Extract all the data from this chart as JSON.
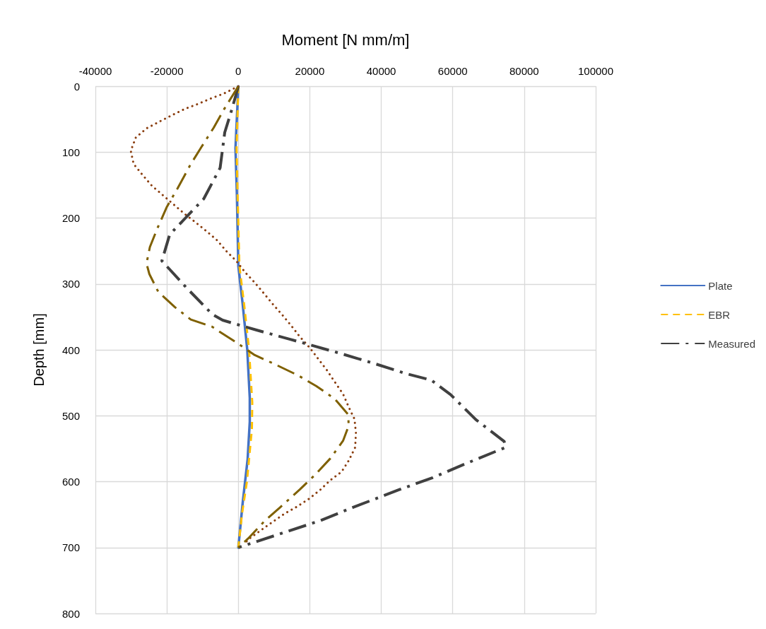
{
  "chart_data": {
    "type": "line",
    "xlabel": "Moment [N mm/m]",
    "ylabel": "Depth [mm]",
    "xlim": [
      -40000,
      100000
    ],
    "xticks": [
      -40000,
      -20000,
      0,
      20000,
      40000,
      60000,
      80000,
      100000
    ],
    "ylim": [
      800,
      0
    ],
    "yticks": [
      0,
      100,
      200,
      300,
      400,
      500,
      600,
      700,
      800
    ],
    "grid": true,
    "legend": "right",
    "marker": "none",
    "series": [
      {
        "name": "Plate",
        "color": "#4472c4",
        "line_style": "solid",
        "x": [
          0,
          -800,
          -400,
          0,
          1200,
          2500,
          3200,
          3200,
          2600,
          1200,
          0
        ],
        "values": [
          0,
          94,
          166,
          273,
          330,
          400,
          473,
          509,
          566,
          633,
          700
        ]
      },
      {
        "name": "EBR",
        "color": "#ffc000",
        "line_style": "dashed",
        "x": [
          0,
          -500,
          -200,
          300,
          1600,
          3000,
          3900,
          3800,
          2400,
          1000,
          0
        ],
        "values": [
          0,
          94,
          166,
          273,
          330,
          400,
          480,
          520,
          600,
          650,
          700
        ]
      },
      {
        "color": "#8b3e0f",
        "line_style": "dotted",
        "x": [
          0,
          -4000,
          -7900,
          -11300,
          -14800,
          -18600,
          -22200,
          -25700,
          -28700,
          -30100,
          -29300,
          -26900,
          -24200,
          -21200,
          -18200,
          -15200,
          -12100,
          -8900,
          -5900,
          -3400,
          -600,
          2000,
          4600,
          7100,
          9700,
          12300,
          14900,
          17200,
          20000,
          22400,
          24800,
          26900,
          29300,
          30900,
          32500,
          32900,
          32700,
          30900,
          28900,
          25700,
          23000,
          19800,
          16400,
          13100,
          9900,
          6500,
          3200,
          1500
        ],
        "values": [
          0,
          11,
          19,
          27,
          34,
          44,
          54,
          64,
          78,
          98,
          118,
          134,
          151,
          165,
          179,
          193,
          206,
          220,
          234,
          250,
          265,
          283,
          298,
          314,
          331,
          347,
          364,
          380,
          397,
          414,
          431,
          448,
          467,
          487,
          505,
          526,
          548,
          568,
          585,
          598,
          612,
          626,
          638,
          648,
          660,
          673,
          686,
          695
        ]
      },
      {
        "name": "Measured",
        "color": "#404040",
        "line_style": "dashed",
        "x": [
          0,
          -1800,
          -3800,
          -5100,
          -9700,
          -19200,
          -21400,
          -14650,
          -7300,
          -4400,
          5100,
          14500,
          28300,
          37600,
          46900,
          54000,
          59400,
          66500,
          74400,
          74800,
          63500,
          54400,
          45100,
          32100,
          23000,
          13500,
          0
        ],
        "values": [
          0,
          35,
          70,
          124,
          171,
          225,
          265,
          305,
          346,
          355,
          370,
          384,
          405,
          420,
          436,
          446,
          468,
          506,
          539,
          548,
          573,
          594,
          612,
          639,
          659,
          676,
          700
        ]
      },
      {
        "color": "#7f6000",
        "line_style": "dashed",
        "x": [
          0,
          -4000,
          -6900,
          -10300,
          -13500,
          -17000,
          -20000,
          -22600,
          -24750,
          -25700,
          -24900,
          -22400,
          -17800,
          -13300,
          -7300,
          -5700,
          -800,
          4600,
          9900,
          16800,
          21800,
          26900,
          30700,
          30900,
          29300,
          25700,
          21400,
          17200,
          11700,
          7300,
          2800,
          0
        ],
        "values": [
          0,
          35,
          63,
          92,
          120,
          155,
          183,
          215,
          244,
          269,
          285,
          312,
          335,
          354,
          365,
          371,
          388,
          408,
          421,
          439,
          455,
          474,
          498,
          515,
          538,
          565,
          590,
          612,
          639,
          660,
          686,
          700
        ]
      }
    ]
  }
}
